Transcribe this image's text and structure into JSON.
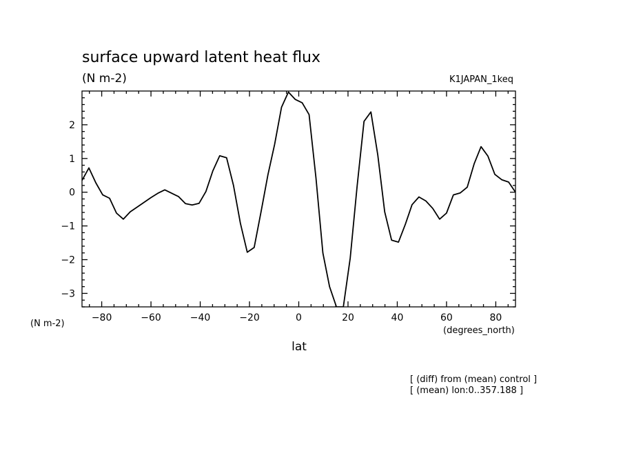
{
  "chart_data": {
    "type": "line",
    "title": "surface upward latent heat flux",
    "units": "(N m-2)",
    "experiment": "K1JAPAN_1keq",
    "xlabel": "lat",
    "xunits": "(degrees_north)",
    "ylabel": "(N m-2)",
    "xlim": [
      -88,
      88
    ],
    "ylim": [
      -3.4,
      3.0
    ],
    "xticks": [
      -80,
      -60,
      -40,
      -20,
      0,
      20,
      40,
      60,
      80
    ],
    "xtick_labels": [
      "−80",
      "−60",
      "−40",
      "−20",
      "0",
      "20",
      "40",
      "60",
      "80"
    ],
    "yticks": [
      -3,
      -2,
      -1,
      0,
      1,
      2
    ],
    "ytick_labels": [
      "−3",
      "−2",
      "−1",
      "0",
      "1",
      "2"
    ],
    "notes": [
      "[ (diff) from (mean) control ]",
      "[ (mean) lon:0..357.188 ]"
    ],
    "series": [
      {
        "x": [
          -88,
          -85.2,
          -82.4,
          -79.6,
          -76.8,
          -74.0,
          -71.2,
          -68.4,
          -65.6,
          -62.8,
          -60.0,
          -57.2,
          -54.4,
          -51.6,
          -48.8,
          -46.0,
          -43.3,
          -40.5,
          -37.7,
          -34.9,
          -32.1,
          -29.3,
          -26.5,
          -23.7,
          -20.9,
          -18.1,
          -15.3,
          -12.5,
          -9.8,
          -7.0,
          -4.2,
          -1.4,
          1.4,
          4.2,
          7.0,
          9.8,
          12.5,
          15.3,
          18.1,
          20.9,
          23.7,
          26.5,
          29.3,
          32.1,
          34.9,
          37.7,
          40.5,
          43.3,
          46.0,
          48.8,
          51.6,
          54.4,
          57.2,
          60.0,
          62.8,
          65.6,
          68.4,
          71.2,
          74.0,
          76.8,
          79.6,
          82.4,
          85.2,
          88
        ],
        "y": [
          0.35,
          0.72,
          0.28,
          -0.08,
          -0.18,
          -0.62,
          -0.8,
          -0.58,
          -0.44,
          -0.3,
          -0.16,
          -0.03,
          0.07,
          -0.03,
          -0.13,
          -0.34,
          -0.38,
          -0.33,
          0.02,
          0.63,
          1.08,
          1.02,
          0.2,
          -0.92,
          -1.78,
          -1.64,
          -0.58,
          0.52,
          1.42,
          2.52,
          2.97,
          2.75,
          2.65,
          2.3,
          0.42,
          -1.8,
          -2.8,
          -3.4,
          -3.4,
          -1.95,
          0.18,
          2.1,
          2.38,
          1.1,
          -0.58,
          -1.42,
          -1.48,
          -0.95,
          -0.37,
          -0.14,
          -0.26,
          -0.48,
          -0.8,
          -0.62,
          -0.08,
          -0.02,
          0.15,
          0.84,
          1.35,
          1.07,
          0.53,
          0.37,
          0.3,
          0.0
        ]
      }
    ]
  }
}
